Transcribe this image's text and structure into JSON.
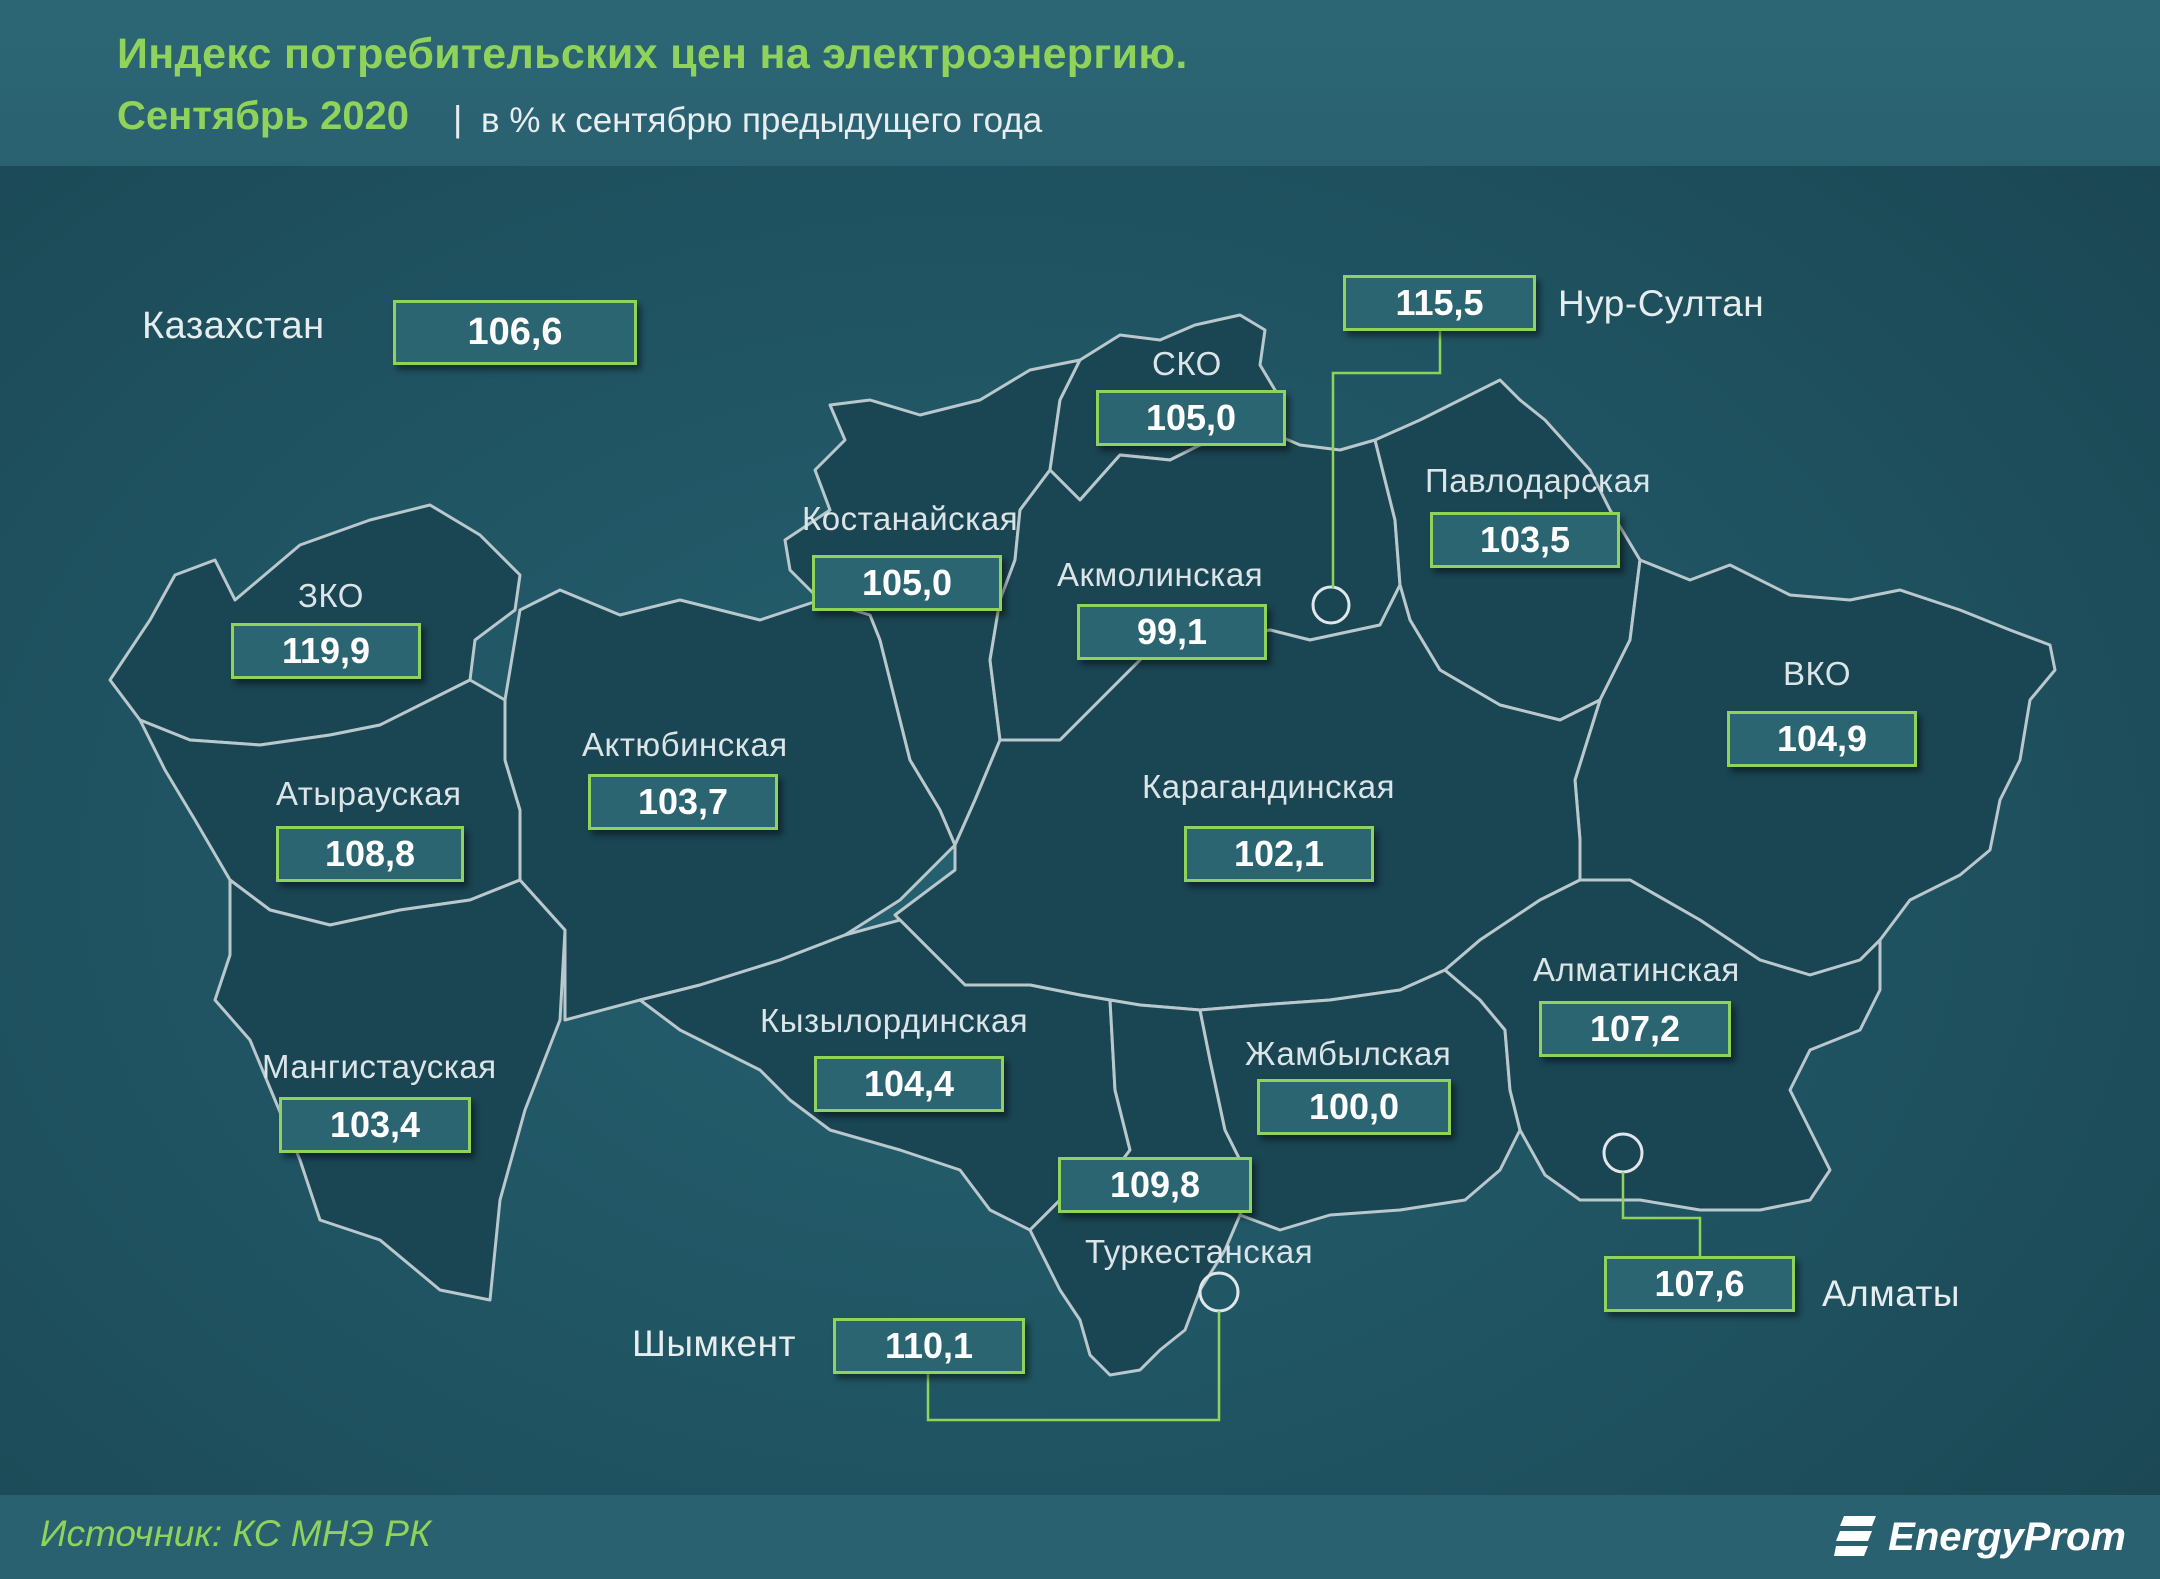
{
  "header": {
    "title": "Индекс потребительских цен на электроэнергию.",
    "subtitle_date": "Сентябрь 2020",
    "subtitle_separator": "|",
    "subtitle_unit": "в % к сентябрю предыдущего года"
  },
  "national": {
    "name": "Казахстан",
    "value": "106,6"
  },
  "regions": {
    "zko": {
      "name": "ЗКО",
      "value": "119,9"
    },
    "atyrau": {
      "name": "Атырауская",
      "value": "108,8"
    },
    "mangistau": {
      "name": "Мангистауская",
      "value": "103,4"
    },
    "aktobe": {
      "name": "Актюбинская",
      "value": "103,7"
    },
    "kostanay": {
      "name": "Костанайская",
      "value": "105,0"
    },
    "sko": {
      "name": "СКО",
      "value": "105,0"
    },
    "akmola": {
      "name": "Акмолинская",
      "value": "99,1"
    },
    "pavlodar": {
      "name": "Павлодарская",
      "value": "103,5"
    },
    "vko": {
      "name": "ВКО",
      "value": "104,9"
    },
    "karaganda": {
      "name": "Карагандинская",
      "value": "102,1"
    },
    "kyzylorda": {
      "name": "Кызылординская",
      "value": "104,4"
    },
    "zhambyl": {
      "name": "Жамбылская",
      "value": "100,0"
    },
    "almaty_region": {
      "name": "Алматинская",
      "value": "107,2"
    },
    "turkestan": {
      "name": "Туркестанская",
      "value": "109,8"
    }
  },
  "cities": {
    "nur_sultan": {
      "name": "Нур-Султан",
      "value": "115,5"
    },
    "almaty": {
      "name": "Алматы",
      "value": "107,6"
    },
    "shymkent": {
      "name": "Шымкент",
      "value": "110,1"
    }
  },
  "footer": {
    "source": "Источник: КС МНЭ РК",
    "logo_text": "EnergyProm"
  },
  "colors": {
    "accent_green": "#8fd35a",
    "background": "#1f5260",
    "region_fill": "#1a4553",
    "border": "#b9c8cd"
  }
}
